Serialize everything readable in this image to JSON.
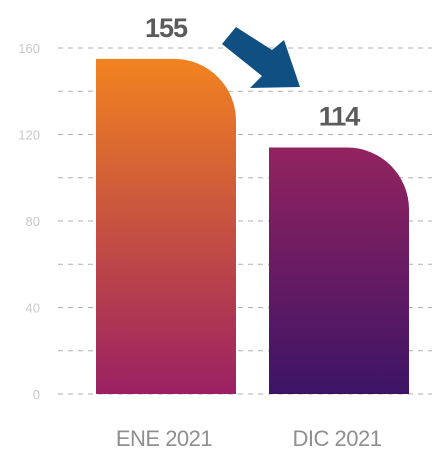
{
  "chart_data": {
    "type": "bar",
    "categories": [
      "ENE 2021",
      "DIC 2021"
    ],
    "values": [
      155,
      114
    ],
    "data_labels": [
      "155",
      "114"
    ],
    "y_ticks": [
      "0",
      "40",
      "80",
      "120",
      "160"
    ],
    "ylim": [
      0,
      160
    ],
    "grid": true,
    "grid_style": "dashed",
    "title": "",
    "xlabel": "",
    "ylabel": "",
    "bar_gradients": [
      {
        "top": "#f2831f",
        "bottom": "#9a2063"
      },
      {
        "top": "#93235f",
        "bottom": "#3c1466"
      }
    ],
    "arrow": {
      "direction": "down-right",
      "color": "#0f4f82"
    },
    "grid_color": "#b0b0b0"
  }
}
